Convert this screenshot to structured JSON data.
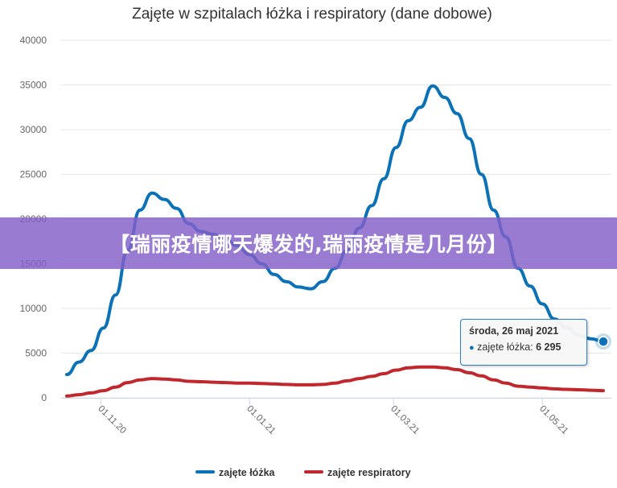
{
  "banner": {
    "text": "【瑞丽疫情哪天爆发的,瑞丽疫情是几月份】"
  },
  "tooltip": {
    "date": "środa, 26 maj 2021",
    "series_label": "zajęte łóżka",
    "value": "6 295"
  },
  "colors": {
    "beds": "#0b72b8",
    "respirators": "#c0282e",
    "tooltip_border": "#2f7ed8"
  },
  "chart_data": {
    "type": "line",
    "title": "Zajęte w szpitalach łóżka i respiratory (dane dobowe)",
    "x_dates": [
      "2020-10-18",
      "2020-10-23",
      "2020-10-28",
      "2020-11-02",
      "2020-11-07",
      "2020-11-12",
      "2020-11-17",
      "2020-11-22",
      "2020-11-27",
      "2020-12-02",
      "2020-12-07",
      "2020-12-12",
      "2020-12-17",
      "2020-12-22",
      "2020-12-27",
      "2021-01-01",
      "2021-01-06",
      "2021-01-11",
      "2021-01-16",
      "2021-01-21",
      "2021-01-26",
      "2021-01-31",
      "2021-02-05",
      "2021-02-10",
      "2021-02-15",
      "2021-02-20",
      "2021-02-25",
      "2021-03-02",
      "2021-03-07",
      "2021-03-12",
      "2021-03-17",
      "2021-03-22",
      "2021-03-27",
      "2021-04-01",
      "2021-04-06",
      "2021-04-11",
      "2021-04-16",
      "2021-04-21",
      "2021-04-26",
      "2021-05-01",
      "2021-05-06",
      "2021-05-11",
      "2021-05-16",
      "2021-05-21",
      "2021-05-26"
    ],
    "x_tick_labels": [
      "01.11.20",
      "01.01.21",
      "01.03.21",
      "01.05.21"
    ],
    "x_tick_dates": [
      "2020-11-01",
      "2021-01-01",
      "2021-03-01",
      "2021-05-01"
    ],
    "y_ticks": [
      0,
      5000,
      10000,
      15000,
      20000,
      25000,
      30000,
      35000,
      40000
    ],
    "y_tick_labels": [
      "0",
      "5000",
      "10000",
      "15000",
      "20000",
      "25000",
      "30000",
      "35000",
      "40000"
    ],
    "ylim": [
      0,
      40000
    ],
    "grid": true,
    "legend_position": "bottom-center",
    "series": [
      {
        "name": "zajęte łóżka",
        "values": [
          2600,
          4000,
          5300,
          7800,
          11500,
          16500,
          21000,
          22900,
          22200,
          21200,
          19500,
          18600,
          18300,
          17700,
          17000,
          16000,
          15000,
          13800,
          13000,
          12400,
          12200,
          13000,
          14500,
          16500,
          19000,
          21500,
          24500,
          28000,
          31000,
          32500,
          34900,
          33600,
          31800,
          29000,
          25000,
          21000,
          18000,
          14500,
          12500,
          10500,
          8800,
          7800,
          7000,
          6600,
          6295
        ]
      },
      {
        "name": "zajęte respiratory",
        "values": [
          200,
          350,
          550,
          800,
          1200,
          1700,
          2000,
          2150,
          2100,
          2000,
          1850,
          1800,
          1750,
          1700,
          1650,
          1650,
          1600,
          1550,
          1500,
          1450,
          1450,
          1500,
          1650,
          1900,
          2150,
          2400,
          2700,
          3100,
          3350,
          3450,
          3450,
          3350,
          3150,
          2800,
          2450,
          2000,
          1650,
          1300,
          1200,
          1100,
          1000,
          950,
          900,
          850,
          800
        ]
      }
    ]
  }
}
